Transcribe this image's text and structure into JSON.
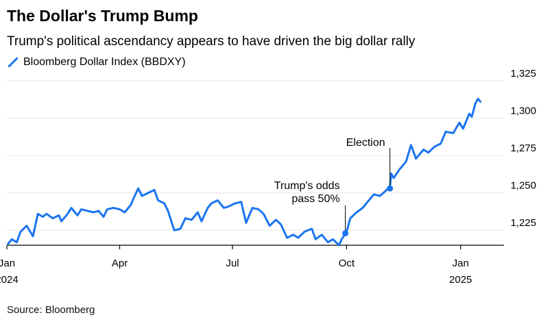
{
  "title": "The Dollar's Trump Bump",
  "subtitle": "Trump's political ascendancy appears to have driven the big dollar rally",
  "source": "Source: Bloomberg",
  "chart_data": {
    "type": "line",
    "title": "The Dollar's Trump Bump",
    "subtitle": "Trump's political ascendancy appears to have driven the big dollar rally",
    "xlim": [
      "2024-01-01",
      "2025-02-05"
    ],
    "ylim": [
      1215,
      1325
    ],
    "ytick_values": [
      1225,
      1250,
      1275,
      1300,
      1325
    ],
    "ytick_labels": [
      "1,225",
      "1,250",
      "1,275",
      "1,300",
      "1,325"
    ],
    "xticks": [
      {
        "date": "2024-01-01",
        "label": "Jan",
        "sublabel": "2024"
      },
      {
        "date": "2024-04-01",
        "label": "Apr",
        "sublabel": ""
      },
      {
        "date": "2024-07-01",
        "label": "Jul",
        "sublabel": ""
      },
      {
        "date": "2024-10-01",
        "label": "Oct",
        "sublabel": ""
      },
      {
        "date": "2025-01-01",
        "label": "Jan",
        "sublabel": "2025"
      }
    ],
    "grid": true,
    "y_axis_side": "right",
    "legend_position": "top-left",
    "colors": {
      "line": "#1a75f0",
      "grid": "#e6e6e6",
      "axis": "#000000"
    },
    "series": [
      {
        "name": "Bloomberg Dollar Index (BBDXY)",
        "x": [
          "2024-01-02",
          "2024-01-05",
          "2024-01-09",
          "2024-01-12",
          "2024-01-17",
          "2024-01-22",
          "2024-01-26",
          "2024-01-30",
          "2024-02-02",
          "2024-02-07",
          "2024-02-12",
          "2024-02-14",
          "2024-02-19",
          "2024-02-22",
          "2024-02-27",
          "2024-03-01",
          "2024-03-06",
          "2024-03-11",
          "2024-03-15",
          "2024-03-19",
          "2024-03-22",
          "2024-03-27",
          "2024-04-01",
          "2024-04-05",
          "2024-04-10",
          "2024-04-12",
          "2024-04-16",
          "2024-04-19",
          "2024-04-24",
          "2024-04-29",
          "2024-05-02",
          "2024-05-07",
          "2024-05-10",
          "2024-05-15",
          "2024-05-20",
          "2024-05-24",
          "2024-05-29",
          "2024-06-03",
          "2024-06-06",
          "2024-06-11",
          "2024-06-14",
          "2024-06-19",
          "2024-06-24",
          "2024-06-28",
          "2024-07-03",
          "2024-07-08",
          "2024-07-12",
          "2024-07-17",
          "2024-07-22",
          "2024-07-26",
          "2024-07-31",
          "2024-08-05",
          "2024-08-09",
          "2024-08-14",
          "2024-08-19",
          "2024-08-23",
          "2024-08-28",
          "2024-09-03",
          "2024-09-06",
          "2024-09-11",
          "2024-09-16",
          "2024-09-20",
          "2024-09-25",
          "2024-09-27",
          "2024-10-01",
          "2024-10-04",
          "2024-10-09",
          "2024-10-14",
          "2024-10-18",
          "2024-10-23",
          "2024-10-28",
          "2024-11-01",
          "2024-11-05",
          "2024-11-06",
          "2024-11-08",
          "2024-11-13",
          "2024-11-18",
          "2024-11-22",
          "2024-11-26",
          "2024-12-02",
          "2024-12-06",
          "2024-12-11",
          "2024-12-16",
          "2024-12-20",
          "2024-12-26",
          "2024-12-31",
          "2025-01-03",
          "2025-01-08",
          "2025-01-10",
          "2025-01-13",
          "2025-01-15",
          "2025-01-17"
        ],
        "y": [
          1216,
          1219,
          1217,
          1224,
          1228,
          1221,
          1236,
          1234,
          1236,
          1233,
          1235,
          1231,
          1236,
          1240,
          1235,
          1239,
          1238,
          1237,
          1238,
          1234,
          1239,
          1240,
          1239,
          1237,
          1242,
          1246,
          1253,
          1248,
          1250,
          1252,
          1245,
          1243,
          1238,
          1225,
          1226,
          1233,
          1232,
          1237,
          1231,
          1240,
          1243,
          1245,
          1240,
          1241,
          1243,
          1244,
          1230,
          1240,
          1239,
          1236,
          1228,
          1232,
          1229,
          1220,
          1222,
          1220,
          1224,
          1226,
          1219,
          1222,
          1217,
          1219,
          1215,
          1219,
          1224,
          1233,
          1237,
          1240,
          1244,
          1249,
          1248,
          1251,
          1254,
          1263,
          1260,
          1266,
          1271,
          1282,
          1273,
          1279,
          1277,
          1281,
          1283,
          1291,
          1290,
          1297,
          1293,
          1303,
          1301,
          1310,
          1313,
          1311
        ]
      }
    ],
    "annotations": [
      {
        "date": "2024-09-30",
        "value": 1223,
        "text": "Trump's odds pass 50%"
      },
      {
        "date": "2024-11-05",
        "value": 1253,
        "text": "Election"
      }
    ]
  }
}
